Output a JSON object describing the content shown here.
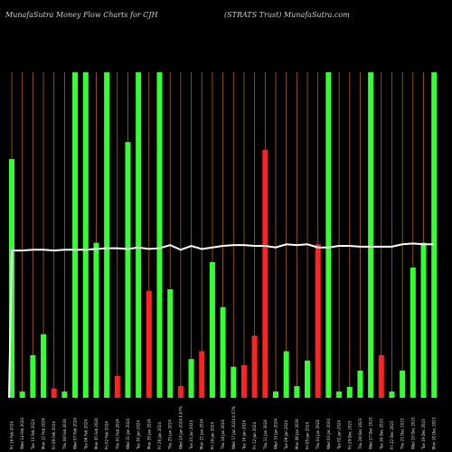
{
  "header": {
    "left_title": "MunafaSutra  Money Flow  Charts for CJH",
    "right_title": "(STRATS Trust) MunafaSutra.com"
  },
  "colors": {
    "background": "#000000",
    "up": "#33ff33",
    "down": "#ff2222",
    "grid": "#b8600a",
    "line": "#ffffff",
    "label": "#e6e6e6"
  },
  "chart_data": {
    "type": "bar",
    "grid": true,
    "categories": [
      "Fri 16 Feb 2024",
      "Wed 14 Feb 2024",
      "Tue 13 Feb 2024",
      "Mon 12 Feb 2024",
      "Fri 09 Feb 2024",
      "Thu 08 Feb 2024",
      "Wed 07 Feb 2024",
      "Tue 06 Feb 2024",
      "Mon 05 Feb 2024",
      "Fri 02 Feb 2024",
      "Thu 01 Feb 2024",
      "Wed 31 Jan 2024",
      "Tue 30 Jan 2024",
      "Mon 29 Jan 2024",
      "Fri 26 Jan 2024",
      "Thu 25 Jan 2024",
      "Wed 24 Jan 2024",
      "Tue 23 Jan 2024",
      "Mon 22 Jan 2024",
      "Fri 19 Jan 2024",
      "Thu 18 Jan 2024",
      "Wed 17 Jan 2024",
      "Tue 16 Jan 2024",
      "Fri 12 Jan 2024",
      "Thu 11 Jan 2024",
      "Wed 10 Jan 2024",
      "Tue 09 Jan 2024",
      "Mon 08 Jan 2024",
      "Fri 05 Jan 2024",
      "Thu 04 Jan 2024",
      "Wed 03 Jan 2024",
      "Tue 02 Jan 2024",
      "Fri 29 Dec 2023",
      "Thu 28 Dec 2023",
      "Wed 27 Dec 2023",
      "Tue 26 Dec 2023",
      "Fri 22 Dec 2023",
      "Thu 21 Dec 2023",
      "Wed 20 Dec 2023",
      "Tue 19 Dec 2023",
      "Mon 18 Dec 2023"
    ],
    "values": [
      308,
      8,
      55,
      82,
      12,
      8,
      420,
      420,
      200,
      420,
      28,
      330,
      420,
      138,
      420,
      140,
      15,
      50,
      60,
      175,
      117,
      40,
      42,
      80,
      320,
      8,
      60,
      15,
      48,
      198,
      420,
      8,
      14,
      35,
      420,
      55,
      8,
      35,
      168,
      200,
      420
    ],
    "directions": [
      "up",
      "up",
      "up",
      "up",
      "down",
      "up",
      "up",
      "up",
      "up",
      "up",
      "down",
      "up",
      "up",
      "down",
      "up",
      "up",
      "down",
      "up",
      "down",
      "up",
      "up",
      "up",
      "down",
      "down",
      "down",
      "up",
      "up",
      "up",
      "up",
      "down",
      "up",
      "up",
      "up",
      "up",
      "up",
      "down",
      "up",
      "up",
      "up",
      "up",
      "up"
    ],
    "pct_labels": [
      {
        "index": 16,
        "text": "4.67%"
      },
      {
        "index": 21,
        "text": "0.57%"
      }
    ],
    "line": [
      190,
      190,
      191,
      191,
      190,
      191,
      191,
      191,
      192,
      193,
      193,
      192,
      194,
      192,
      193,
      197,
      191,
      196,
      192,
      194,
      196,
      197,
      197,
      196,
      196,
      194,
      198,
      197,
      198,
      194,
      194,
      196,
      196,
      195,
      195,
      195,
      195,
      198,
      199,
      198,
      198
    ],
    "line_start": 0,
    "ylim": [
      0,
      420
    ]
  }
}
